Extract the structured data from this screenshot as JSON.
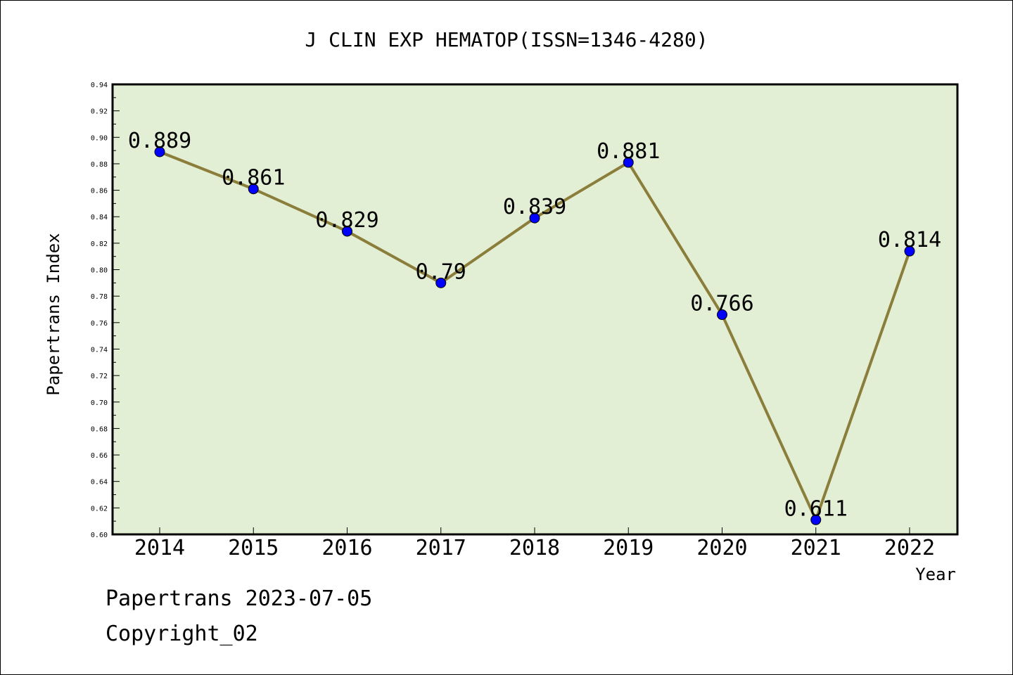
{
  "chart_data": {
    "type": "line",
    "title": "J CLIN EXP HEMATOP(ISSN=1346-4280)",
    "xlabel": "Year",
    "ylabel": "Papertrans Index",
    "categories": [
      "2014",
      "2015",
      "2016",
      "2017",
      "2018",
      "2019",
      "2020",
      "2021",
      "2022"
    ],
    "values": [
      0.889,
      0.861,
      0.829,
      0.79,
      0.839,
      0.881,
      0.766,
      0.611,
      0.814
    ],
    "data_labels": [
      "0.889",
      "0.861",
      "0.829",
      "0.79",
      "0.839",
      "0.881",
      "0.766",
      "0.611",
      "0.814"
    ],
    "ylim": [
      0.6,
      0.94
    ],
    "yticks": [
      "0.60",
      "0.62",
      "0.64",
      "0.66",
      "0.68",
      "0.70",
      "0.72",
      "0.74",
      "0.76",
      "0.78",
      "0.80",
      "0.82",
      "0.84",
      "0.86",
      "0.88",
      "0.90",
      "0.92",
      "0.94"
    ],
    "grid": false,
    "colors": {
      "plot_background": "#e2efd5",
      "line": "#8b7d3a",
      "marker": "#0000ff"
    }
  },
  "footer": {
    "line1": "Papertrans 2023-07-05",
    "line2": "Copyright_02"
  }
}
